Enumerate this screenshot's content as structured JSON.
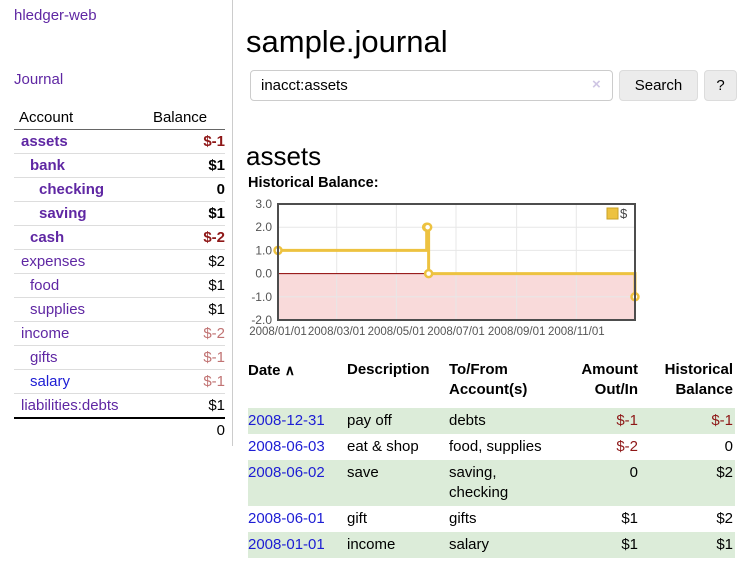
{
  "app": {
    "brand": "hledger-web",
    "nav_journal": "Journal"
  },
  "sidebar": {
    "header": {
      "account": "Account",
      "balance": "Balance"
    },
    "accounts": [
      {
        "name": "assets",
        "depth": 0,
        "balance": "$-1",
        "bold": true,
        "neg": "strong",
        "blue": false
      },
      {
        "name": "bank",
        "depth": 1,
        "balance": "$1",
        "bold": true,
        "neg": null,
        "blue": false
      },
      {
        "name": "checking",
        "depth": 2,
        "balance": "0",
        "bold": true,
        "neg": null,
        "blue": false
      },
      {
        "name": "saving",
        "depth": 2,
        "balance": "$1",
        "bold": true,
        "neg": null,
        "blue": false
      },
      {
        "name": "cash",
        "depth": 1,
        "balance": "$-2",
        "bold": true,
        "neg": "strong",
        "blue": false
      },
      {
        "name": "expenses",
        "depth": 0,
        "balance": "$2",
        "bold": false,
        "neg": null,
        "blue": false
      },
      {
        "name": "food",
        "depth": 1,
        "balance": "$1",
        "bold": false,
        "neg": null,
        "blue": false
      },
      {
        "name": "supplies",
        "depth": 1,
        "balance": "$1",
        "bold": false,
        "neg": null,
        "blue": false
      },
      {
        "name": "income",
        "depth": 0,
        "balance": "$-2",
        "bold": false,
        "neg": "soft",
        "blue": false
      },
      {
        "name": "gifts",
        "depth": 1,
        "balance": "$-1",
        "bold": false,
        "neg": "soft",
        "blue": false
      },
      {
        "name": "salary",
        "depth": 1,
        "balance": "$-1",
        "bold": false,
        "neg": "soft",
        "blue": true
      },
      {
        "name": "liabilities:debts",
        "depth": 0,
        "balance": "$1",
        "bold": false,
        "neg": null,
        "blue": false
      }
    ],
    "total": "0"
  },
  "header": {
    "title": "sample.journal"
  },
  "search": {
    "value": "inacct:assets",
    "clear_icon": "×",
    "button": "Search",
    "help_button": "?"
  },
  "account_page": {
    "title": "assets",
    "chart_label": "Historical Balance:"
  },
  "chart_data": {
    "type": "line",
    "step": true,
    "title": "Historical Balance:",
    "series": [
      {
        "name": "$",
        "color": "#edc240",
        "points_day_value": [
          [
            0,
            1
          ],
          [
            152,
            2
          ],
          [
            153,
            2
          ],
          [
            154,
            0
          ],
          [
            365,
            -1
          ]
        ]
      }
    ],
    "x_ticks": [
      {
        "day": 0,
        "label": "2008/01/01"
      },
      {
        "day": 60,
        "label": "2008/03/01"
      },
      {
        "day": 121,
        "label": "2008/05/01"
      },
      {
        "day": 182,
        "label": "2008/07/01"
      },
      {
        "day": 244,
        "label": "2008/09/01"
      },
      {
        "day": 305,
        "label": "2008/11/01"
      }
    ],
    "y_ticks": [
      "3.0",
      "2.0",
      "1.0",
      "0.0",
      "-1.0",
      "-2.0"
    ],
    "xlim_days": [
      0,
      365
    ],
    "ylim": [
      -2,
      3
    ],
    "grid": true,
    "legend": {
      "position": "top-right",
      "label": "$"
    },
    "colors": {
      "line": "#edc240",
      "marker_fill": "#ffffff",
      "legend_box_border": "#c9a227",
      "negative_region": "#f9dada",
      "zero_line": "#8e0000",
      "grid": "#e7e7e7",
      "border": "#4d4d4d",
      "axis_text": "#555555"
    }
  },
  "register": {
    "sort_icon": "∧",
    "columns": [
      {
        "label": "Date",
        "align": "left",
        "sortable": true
      },
      {
        "label": "Description",
        "align": "left",
        "sortable": false
      },
      {
        "label": "To/From Account(s)",
        "align": "left",
        "sortable": false
      },
      {
        "label": "Amount Out/In",
        "align": "right",
        "sortable": false
      },
      {
        "label": "Historical Balance",
        "align": "right",
        "sortable": false
      }
    ],
    "rows": [
      {
        "date": "2008-12-31",
        "description": "pay off",
        "accounts": "debts",
        "amount": "$-1",
        "amount_neg": true,
        "balance": "$-1",
        "balance_neg": true
      },
      {
        "date": "2008-06-03",
        "description": "eat & shop",
        "accounts": "food, supplies",
        "amount": "$-2",
        "amount_neg": true,
        "balance": "0",
        "balance_neg": false
      },
      {
        "date": "2008-06-02",
        "description": "save",
        "accounts": "saving, checking",
        "amount": "0",
        "amount_neg": false,
        "balance": "$2",
        "balance_neg": false
      },
      {
        "date": "2008-06-01",
        "description": "gift",
        "accounts": "gifts",
        "amount": "$1",
        "amount_neg": false,
        "balance": "$2",
        "balance_neg": false
      },
      {
        "date": "2008-01-01",
        "description": "income",
        "accounts": "salary",
        "amount": "$1",
        "amount_neg": false,
        "balance": "$1",
        "balance_neg": false
      }
    ]
  }
}
